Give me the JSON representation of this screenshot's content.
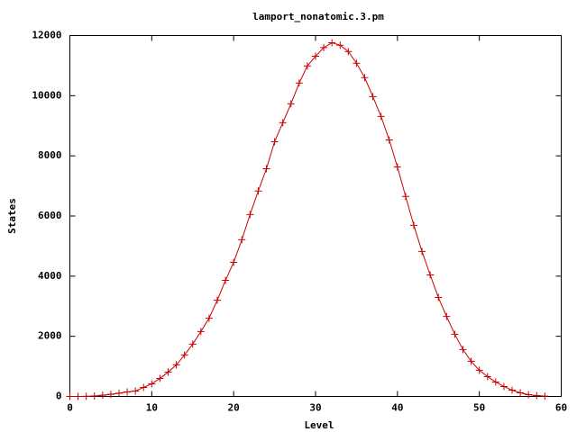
{
  "chart_data": {
    "type": "line",
    "title": "lamport_nonatomic.3.pm",
    "x_label": "Level",
    "y_label": "States",
    "x": [
      0,
      1,
      2,
      3,
      4,
      5,
      6,
      7,
      8,
      9,
      10,
      11,
      12,
      13,
      14,
      15,
      16,
      17,
      18,
      19,
      20,
      21,
      22,
      23,
      24,
      25,
      26,
      27,
      28,
      29,
      30,
      31,
      32,
      33,
      34,
      35,
      36,
      37,
      38,
      39,
      40,
      41,
      42,
      43,
      44,
      45,
      46,
      47,
      48,
      49,
      50,
      51,
      52,
      53,
      54,
      55,
      56,
      57,
      58
    ],
    "series": [
      {
        "name": "lamport_nonatomic.3.pm",
        "color": "#cc0000",
        "values": [
          0,
          0,
          5,
          15,
          40,
          70,
          110,
          150,
          180,
          300,
          420,
          600,
          810,
          1050,
          1380,
          1740,
          2160,
          2600,
          3200,
          3860,
          4460,
          5210,
          6050,
          6830,
          7570,
          8470,
          9100,
          9730,
          10420,
          10990,
          11310,
          11600,
          11760,
          11680,
          11470,
          11080,
          10600,
          9970,
          9310,
          8530,
          7630,
          6650,
          5690,
          4820,
          4040,
          3290,
          2660,
          2070,
          1560,
          1170,
          870,
          660,
          480,
          330,
          210,
          120,
          60,
          30,
          10
        ]
      }
    ],
    "xlim": [
      0,
      60
    ],
    "xticks": [
      0,
      10,
      20,
      30,
      40,
      50,
      60
    ],
    "ylim": [
      0,
      12000
    ],
    "yticks": [
      0,
      2000,
      4000,
      6000,
      8000,
      10000,
      12000
    ]
  }
}
